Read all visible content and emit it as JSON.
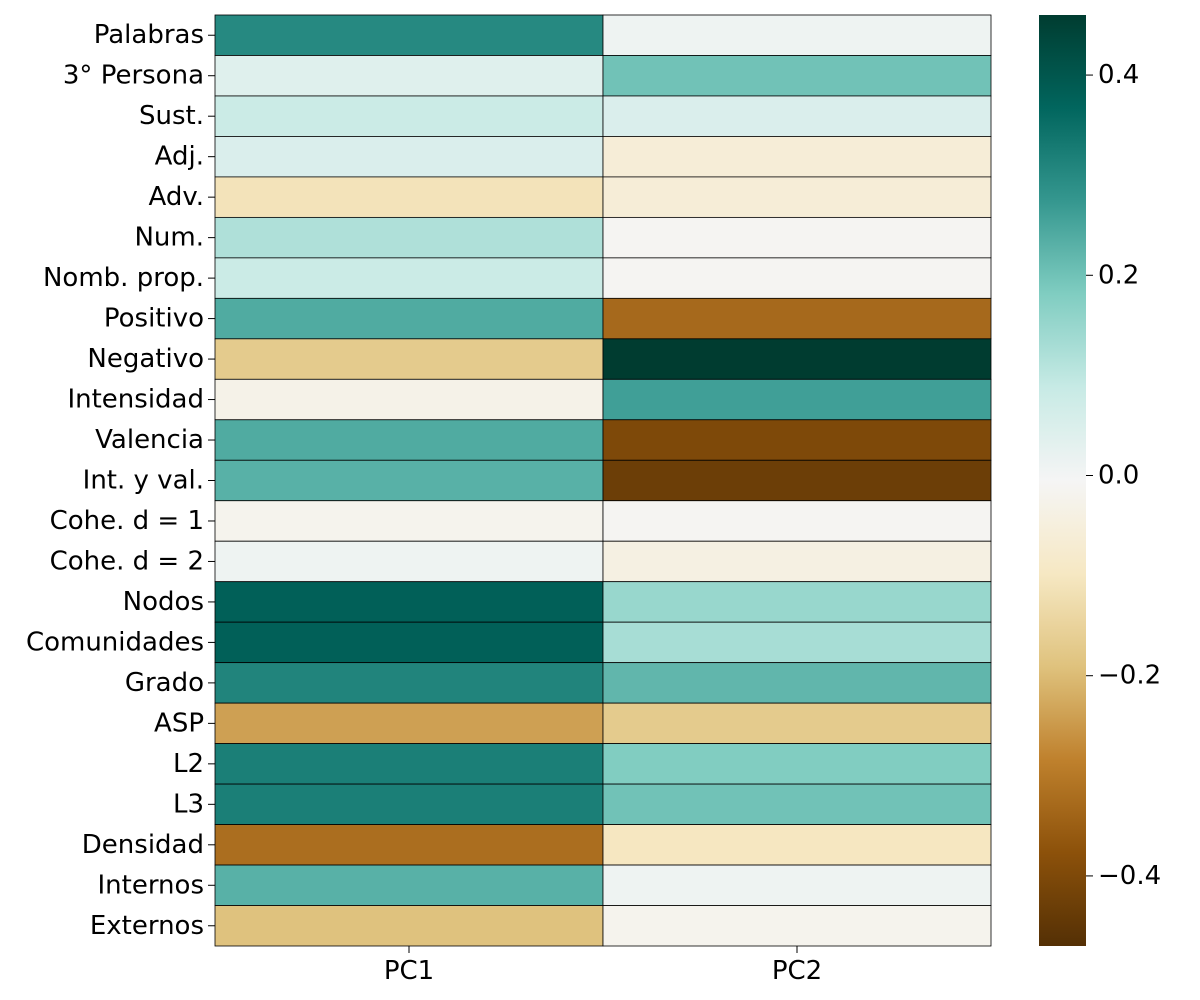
{
  "chart_data": {
    "type": "heatmap",
    "title": "",
    "xlabel": "",
    "ylabel": "",
    "columns": [
      "PC1",
      "PC2"
    ],
    "rows": [
      "Palabras",
      "3° Persona",
      "Sust.",
      "Adj.",
      "Adv.",
      "Num.",
      "Nomb. prop.",
      "Positivo",
      "Negativo",
      "Intensidad",
      "Valencia",
      "Int. y val.",
      "Cohe. d = 1",
      "Cohe. d = 2",
      "Nodos",
      "Comunidades",
      "Grado",
      "ASP",
      "L2",
      "L3",
      "Densidad",
      "Internos",
      "Externos"
    ],
    "values": [
      [
        0.3,
        0.01
      ],
      [
        0.04,
        0.2
      ],
      [
        0.08,
        0.05
      ],
      [
        0.05,
        -0.06
      ],
      [
        -0.11,
        -0.06
      ],
      [
        0.12,
        -0.01
      ],
      [
        0.08,
        -0.01
      ],
      [
        0.24,
        -0.33
      ],
      [
        -0.17,
        0.46
      ],
      [
        -0.03,
        0.26
      ],
      [
        0.24,
        -0.4
      ],
      [
        0.23,
        -0.43
      ],
      [
        -0.02,
        -0.01
      ],
      [
        0.01,
        -0.04
      ],
      [
        0.38,
        0.15
      ],
      [
        0.38,
        0.13
      ],
      [
        0.31,
        0.22
      ],
      [
        -0.24,
        -0.17
      ],
      [
        0.32,
        0.18
      ],
      [
        0.32,
        0.2
      ],
      [
        -0.32,
        -0.1
      ],
      [
        0.23,
        0.01
      ],
      [
        -0.19,
        -0.02
      ]
    ],
    "colorbar": {
      "colormap": "BrBG",
      "vmin": -0.47,
      "vmax": 0.46,
      "ticks": [
        0.4,
        0.2,
        0.0,
        -0.2,
        -0.4
      ],
      "tick_labels": [
        "0.4",
        "0.2",
        "0.0",
        "−0.2",
        "−0.4"
      ]
    },
    "cell_border_color": "#000000",
    "grid": false
  }
}
